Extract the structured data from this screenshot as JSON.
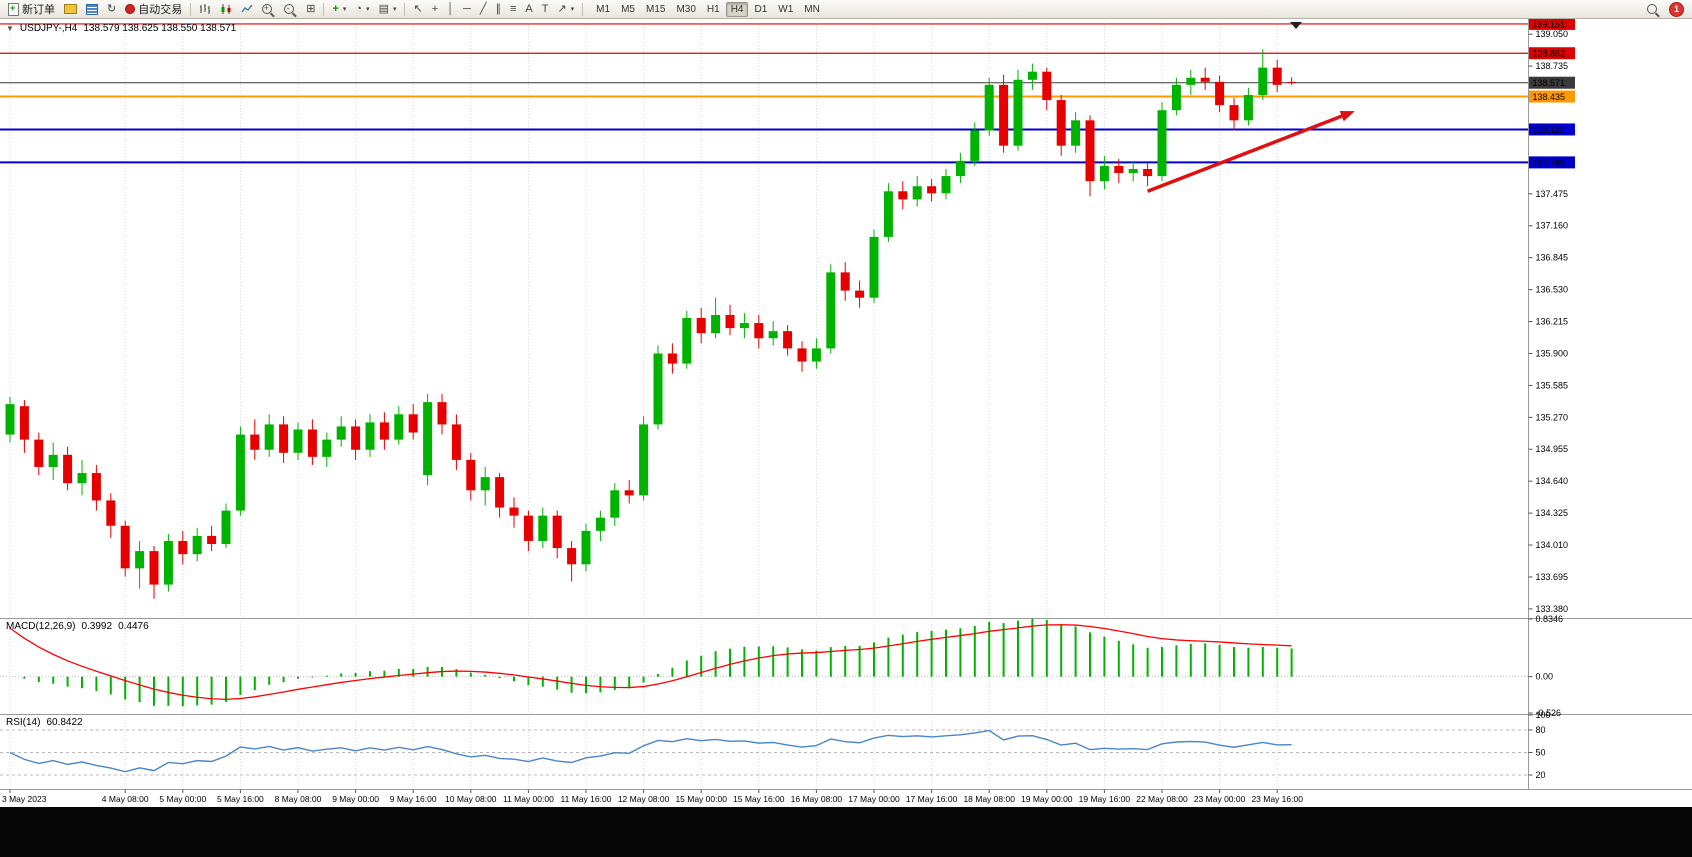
{
  "toolbar": {
    "new_order_label": "新订单",
    "autotrading_label": "自动交易",
    "timeframes": [
      "M1",
      "M5",
      "M15",
      "M30",
      "H1",
      "H4",
      "D1",
      "W1",
      "MN"
    ],
    "active_timeframe": "H4",
    "notification_count": "1"
  },
  "icons": {
    "collapse": "▼",
    "caret": "▾",
    "refresh": "↻",
    "tile": "⊞",
    "clock": "◔",
    "template": "▤",
    "indicator_plus": "+",
    "cursor": "↖",
    "crosshair": "+",
    "vline": "│",
    "hline": "─",
    "trendline": "╱",
    "channel": "∥",
    "fibonacci": "≡",
    "text": "A",
    "text_label": "T",
    "arrow_tool": "↗"
  },
  "chart": {
    "symbol_label": "USDJPY-,H4",
    "ohlc_text": "138.579 138.625 138.550 138.571",
    "levels": [
      {
        "label": "139.151",
        "price": 139.151,
        "color": "#dd0000",
        "w": 1.2
      },
      {
        "label": "138.862",
        "price": 138.862,
        "color": "#dd0000",
        "w": 1.2
      },
      {
        "label": "138.571",
        "price": 138.571,
        "color": "#3a3a3a",
        "w": 1,
        "current": true
      },
      {
        "label": "138.435",
        "price": 138.435,
        "color": "#ff9900",
        "w": 2
      },
      {
        "label": "138.110",
        "price": 138.11,
        "color": "#0000cc",
        "w": 2
      },
      {
        "label": "137.785",
        "price": 137.785,
        "color": "#0000cc",
        "w": 2
      }
    ],
    "price_ticks": [
      "139.050",
      "138.735",
      "138.420",
      "138.105",
      "137.790",
      "137.475",
      "137.160",
      "136.845",
      "136.530",
      "136.215",
      "135.900",
      "135.585",
      "135.270",
      "134.955",
      "134.640",
      "134.325",
      "134.010",
      "133.695",
      "133.380"
    ],
    "colors": {
      "bull": "#00b300",
      "bear": "#e60000",
      "grid": "#d6d6d6",
      "macd_hist": "#00b300",
      "macd_signal": "#ff0000",
      "rsi_line": "#4a86c8",
      "annotation": "#e01010",
      "axis_text": "#000000"
    },
    "annotation_arrow": {
      "from": {
        "i": 79,
        "p": 137.5
      },
      "to": {
        "i": 93,
        "p": 138.27
      }
    }
  },
  "macd": {
    "name": "MACD(12,26,9)",
    "value": "0.3992",
    "value2": "0.4476",
    "ticks": [
      {
        "t": "0.8346",
        "v": 0.8346
      },
      {
        "t": "0.00",
        "v": 0
      },
      {
        "t": "-0.526",
        "v": -0.526
      }
    ],
    "range": {
      "max": 0.8346,
      "min": -0.526
    },
    "params": {
      "fast": 12,
      "slow": 26,
      "signal": 9,
      "signal_seed": 0.65
    }
  },
  "rsi": {
    "name": "RSI(14)",
    "value": "60.8422",
    "period": 14,
    "ticks": [
      {
        "t": "100",
        "v": 100
      },
      {
        "t": "80",
        "v": 80
      },
      {
        "t": "50",
        "v": 50
      },
      {
        "t": "20",
        "v": 20
      }
    ],
    "levels": [
      80,
      50,
      20
    ]
  },
  "time_axis": {
    "labels": [
      {
        "t": "3 May 2023",
        "i": 0
      },
      {
        "t": "4 May 08:00",
        "i": 8
      },
      {
        "t": "5 May 00:00",
        "i": 12
      },
      {
        "t": "5 May 16:00",
        "i": 16
      },
      {
        "t": "8 May 08:00",
        "i": 20
      },
      {
        "t": "9 May 00:00",
        "i": 24
      },
      {
        "t": "9 May 16:00",
        "i": 28
      },
      {
        "t": "10 May 08:00",
        "i": 32
      },
      {
        "t": "11 May 00:00",
        "i": 36
      },
      {
        "t": "11 May 16:00",
        "i": 40
      },
      {
        "t": "12 May 08:00",
        "i": 44
      },
      {
        "t": "15 May 00:00",
        "i": 48
      },
      {
        "t": "15 May 16:00",
        "i": 52
      },
      {
        "t": "16 May 08:00",
        "i": 56
      },
      {
        "t": "17 May 00:00",
        "i": 60
      },
      {
        "t": "17 May 16:00",
        "i": 64
      },
      {
        "t": "18 May 08:00",
        "i": 68
      },
      {
        "t": "19 May 00:00",
        "i": 72
      },
      {
        "t": "19 May 16:00",
        "i": 76
      },
      {
        "t": "22 May 08:00",
        "i": 80
      },
      {
        "t": "23 May 00:00",
        "i": 84
      },
      {
        "t": "23 May 16:00",
        "i": 88
      }
    ]
  },
  "chart_data": {
    "type": "candlestick",
    "symbol": "USDJPY",
    "timeframe": "H4",
    "ohlc_order": [
      "open",
      "high",
      "low",
      "close"
    ],
    "candles": [
      [
        135.1,
        135.47,
        135.02,
        135.4
      ],
      [
        135.38,
        135.44,
        134.92,
        135.05
      ],
      [
        135.05,
        135.12,
        134.7,
        134.78
      ],
      [
        134.78,
        135.02,
        134.65,
        134.9
      ],
      [
        134.9,
        134.98,
        134.55,
        134.62
      ],
      [
        134.62,
        134.85,
        134.5,
        134.72
      ],
      [
        134.72,
        134.8,
        134.35,
        134.45
      ],
      [
        134.45,
        134.52,
        134.08,
        134.2
      ],
      [
        134.2,
        134.25,
        133.7,
        133.78
      ],
      [
        133.78,
        134.05,
        133.58,
        133.95
      ],
      [
        133.95,
        134.0,
        133.48,
        133.62
      ],
      [
        133.62,
        134.12,
        133.55,
        134.05
      ],
      [
        134.05,
        134.15,
        133.82,
        133.92
      ],
      [
        133.92,
        134.18,
        133.85,
        134.1
      ],
      [
        134.1,
        134.2,
        133.95,
        134.02
      ],
      [
        134.02,
        134.42,
        133.98,
        134.35
      ],
      [
        134.35,
        135.18,
        134.3,
        135.1
      ],
      [
        135.1,
        135.25,
        134.85,
        134.95
      ],
      [
        134.95,
        135.3,
        134.88,
        135.2
      ],
      [
        135.2,
        135.28,
        134.82,
        134.92
      ],
      [
        134.92,
        135.22,
        134.85,
        135.15
      ],
      [
        135.15,
        135.25,
        134.8,
        134.88
      ],
      [
        134.88,
        135.12,
        134.78,
        135.05
      ],
      [
        135.05,
        135.28,
        134.98,
        135.18
      ],
      [
        135.18,
        135.25,
        134.85,
        134.95
      ],
      [
        134.95,
        135.3,
        134.88,
        135.22
      ],
      [
        135.22,
        135.32,
        134.95,
        135.05
      ],
      [
        135.05,
        135.38,
        135.0,
        135.3
      ],
      [
        135.3,
        135.4,
        135.05,
        135.12
      ],
      [
        134.7,
        135.5,
        134.6,
        135.42
      ],
      [
        135.42,
        135.5,
        135.1,
        135.2
      ],
      [
        135.2,
        135.3,
        134.75,
        134.85
      ],
      [
        134.85,
        134.92,
        134.45,
        134.55
      ],
      [
        134.55,
        134.78,
        134.4,
        134.68
      ],
      [
        134.68,
        134.72,
        134.28,
        134.38
      ],
      [
        134.38,
        134.48,
        134.18,
        134.3
      ],
      [
        134.3,
        134.35,
        133.95,
        134.05
      ],
      [
        134.05,
        134.38,
        133.98,
        134.3
      ],
      [
        134.3,
        134.35,
        133.88,
        133.98
      ],
      [
        133.98,
        134.05,
        133.65,
        133.82
      ],
      [
        133.82,
        134.22,
        133.75,
        134.15
      ],
      [
        134.15,
        134.35,
        134.05,
        134.28
      ],
      [
        134.28,
        134.62,
        134.2,
        134.55
      ],
      [
        134.55,
        134.65,
        134.42,
        134.5
      ],
      [
        134.5,
        135.28,
        134.45,
        135.2
      ],
      [
        135.2,
        135.98,
        135.15,
        135.9
      ],
      [
        135.9,
        136.0,
        135.7,
        135.8
      ],
      [
        135.8,
        136.32,
        135.75,
        136.25
      ],
      [
        136.25,
        136.35,
        136.0,
        136.1
      ],
      [
        136.1,
        136.45,
        136.05,
        136.28
      ],
      [
        136.28,
        136.38,
        136.08,
        136.15
      ],
      [
        136.15,
        136.3,
        136.05,
        136.2
      ],
      [
        136.2,
        136.28,
        135.95,
        136.05
      ],
      [
        136.05,
        136.22,
        135.98,
        136.12
      ],
      [
        136.12,
        136.18,
        135.88,
        135.95
      ],
      [
        135.95,
        136.02,
        135.72,
        135.82
      ],
      [
        135.82,
        136.05,
        135.75,
        135.95
      ],
      [
        135.95,
        136.78,
        135.9,
        136.7
      ],
      [
        136.7,
        136.8,
        136.42,
        136.52
      ],
      [
        136.52,
        136.62,
        136.35,
        136.45
      ],
      [
        136.45,
        137.12,
        136.4,
        137.05
      ],
      [
        137.05,
        137.58,
        137.0,
        137.5
      ],
      [
        137.5,
        137.6,
        137.32,
        137.42
      ],
      [
        137.42,
        137.65,
        137.35,
        137.55
      ],
      [
        137.55,
        137.62,
        137.4,
        137.48
      ],
      [
        137.48,
        137.72,
        137.42,
        137.65
      ],
      [
        137.65,
        137.88,
        137.58,
        137.8
      ],
      [
        137.8,
        138.18,
        137.75,
        138.1
      ],
      [
        138.1,
        138.62,
        138.05,
        138.55
      ],
      [
        138.55,
        138.65,
        137.88,
        137.95
      ],
      [
        137.95,
        138.7,
        137.9,
        138.6
      ],
      [
        138.6,
        138.76,
        138.5,
        138.68
      ],
      [
        138.68,
        138.72,
        138.3,
        138.4
      ],
      [
        138.4,
        138.45,
        137.85,
        137.95
      ],
      [
        137.95,
        138.28,
        137.88,
        138.2
      ],
      [
        138.2,
        138.25,
        137.45,
        137.6
      ],
      [
        137.6,
        137.85,
        137.52,
        137.75
      ],
      [
        137.75,
        137.82,
        137.58,
        137.68
      ],
      [
        137.68,
        137.8,
        137.6,
        137.72
      ],
      [
        137.72,
        137.78,
        137.55,
        137.65
      ],
      [
        137.65,
        138.38,
        137.6,
        138.3
      ],
      [
        138.3,
        138.62,
        138.25,
        138.55
      ],
      [
        138.55,
        138.7,
        138.45,
        138.62
      ],
      [
        138.62,
        138.72,
        138.5,
        138.58
      ],
      [
        138.58,
        138.64,
        138.28,
        138.35
      ],
      [
        138.35,
        138.42,
        138.1,
        138.2
      ],
      [
        138.2,
        138.52,
        138.15,
        138.45
      ],
      [
        138.45,
        138.9,
        138.4,
        138.72
      ],
      [
        138.72,
        138.8,
        138.48,
        138.55
      ],
      [
        138.579,
        138.625,
        138.55,
        138.571
      ]
    ]
  }
}
